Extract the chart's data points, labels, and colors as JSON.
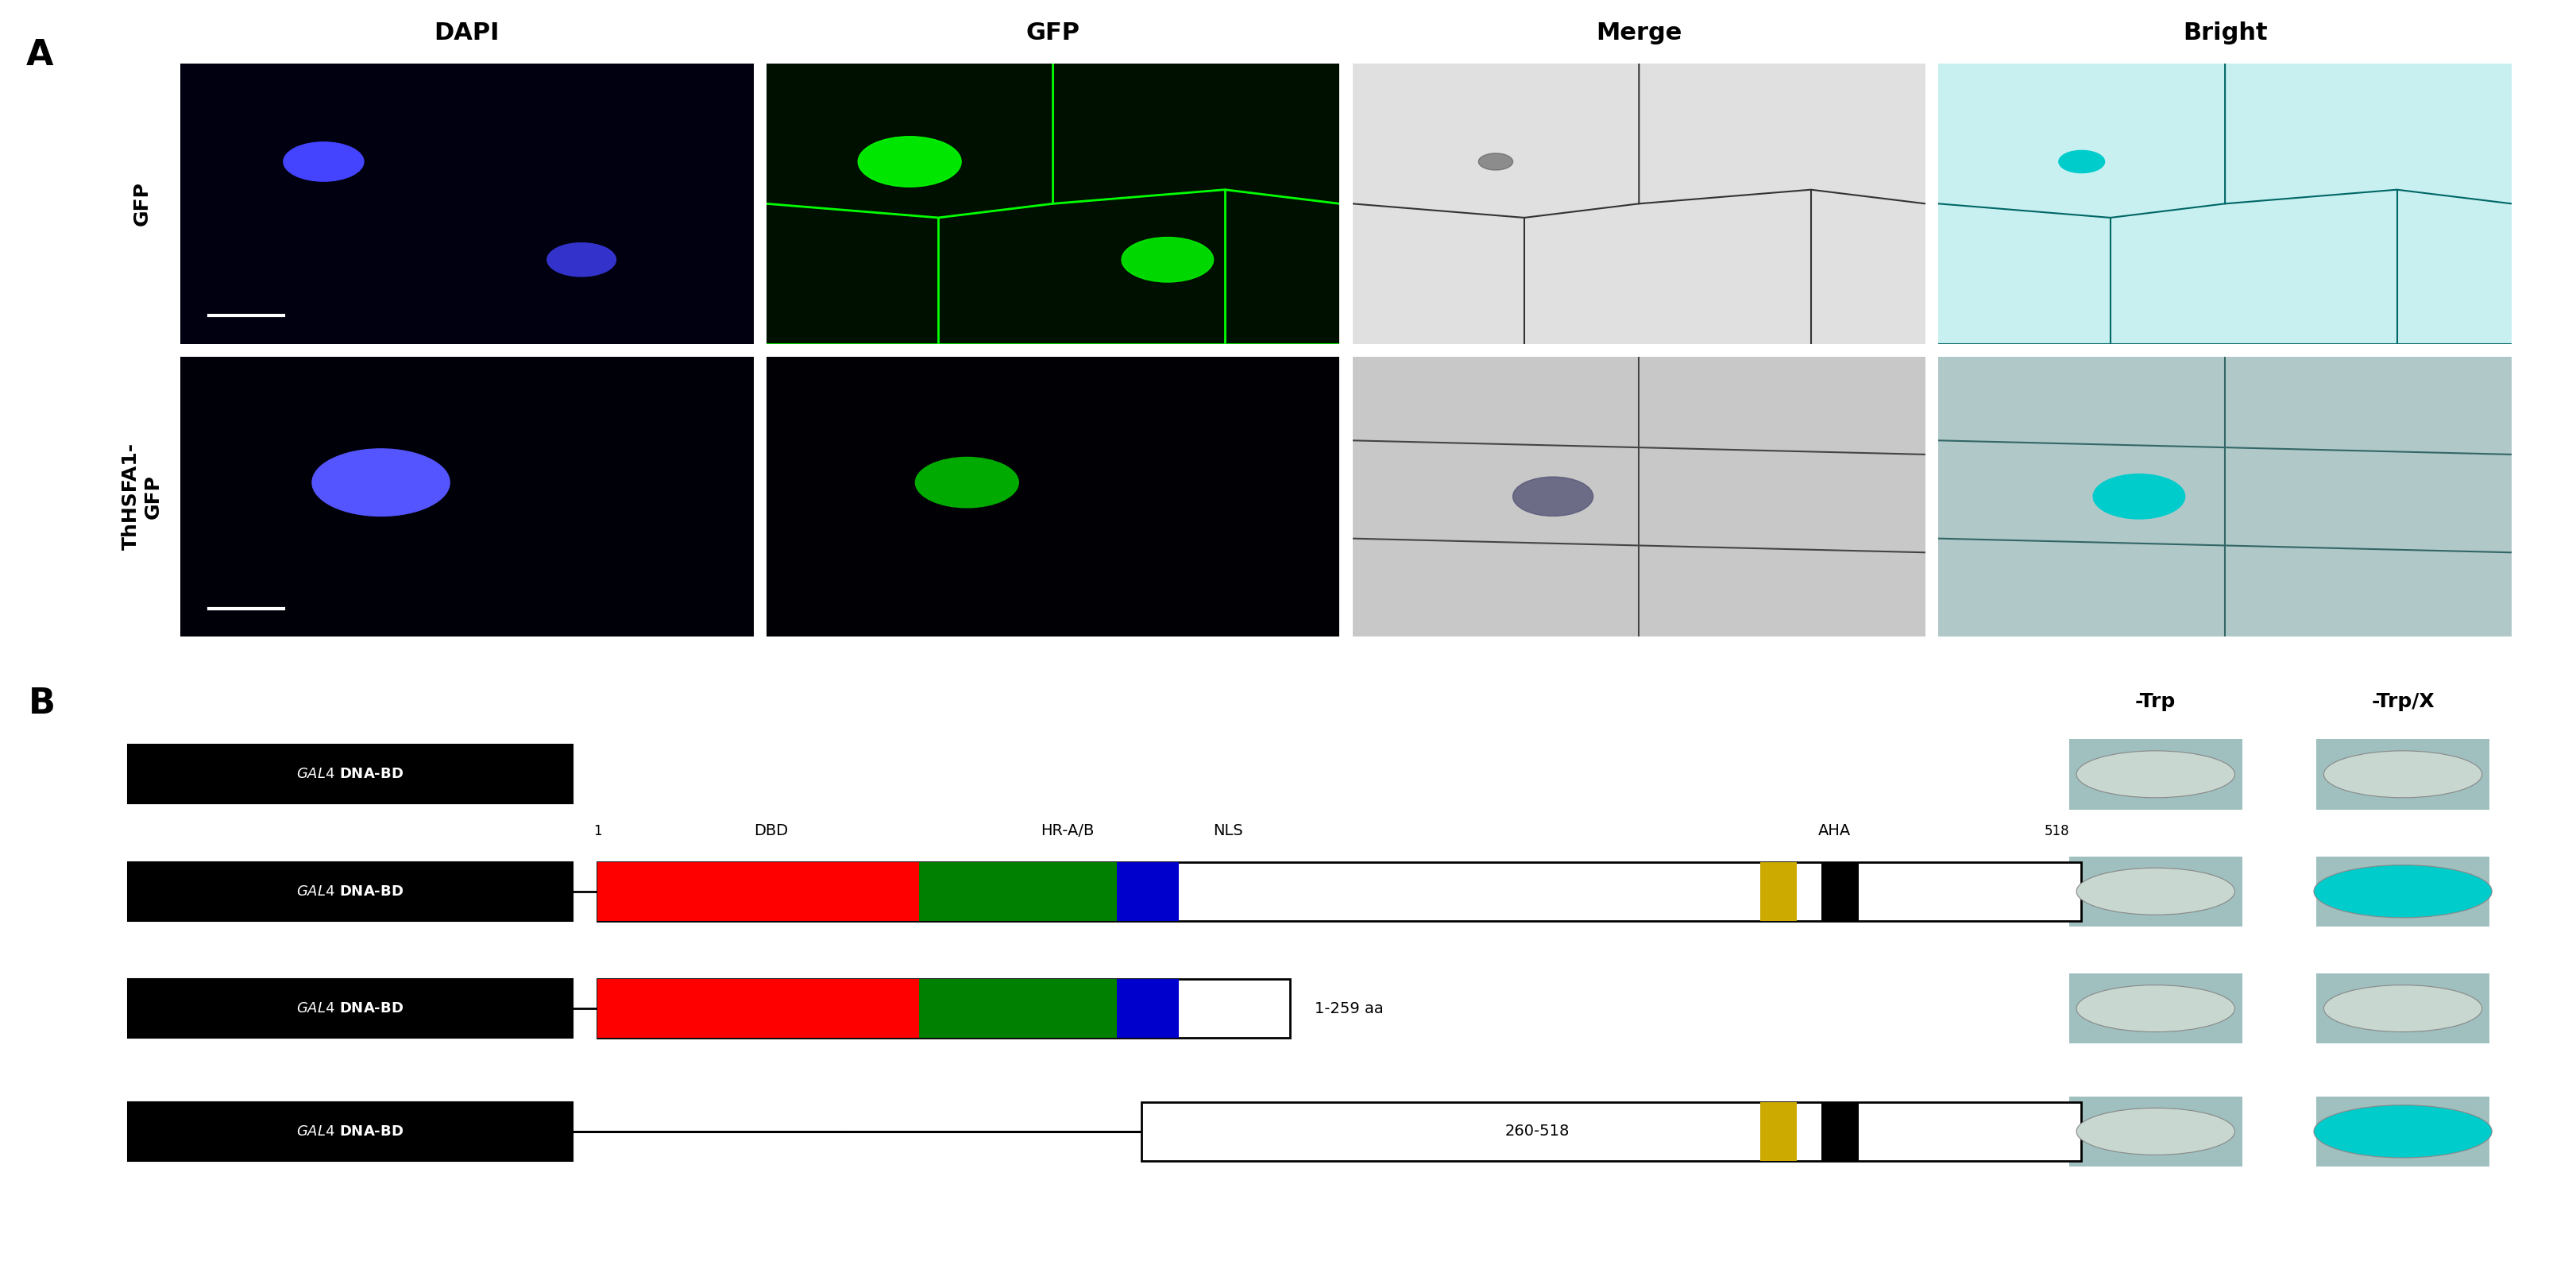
{
  "fig_width": 32.43,
  "fig_height": 16.02,
  "panel_A_label": "A",
  "panel_B_label": "B",
  "col_headers": [
    "DAPI",
    "GFP",
    "Merge",
    "Bright"
  ],
  "row_labels": [
    "GFP",
    "ThHSFA1-\nGFP"
  ],
  "trp_label": "-Trp",
  "trpx_label": "-Trp/X",
  "constructs": [
    {
      "label": "GAL4 DNA-BD",
      "has_bar": false,
      "has_red": false,
      "has_green": false,
      "has_blue_nls": false,
      "has_aha": false,
      "has_260518": false,
      "short": true
    },
    {
      "label": "GAL4 DNA-BD",
      "has_bar": true,
      "has_red": true,
      "has_green": true,
      "has_blue_nls": true,
      "has_aha": true,
      "has_260518": false,
      "short": false
    },
    {
      "label": "GAL4 DNA-BD",
      "has_bar": true,
      "has_red": true,
      "has_green": true,
      "has_blue_nls": true,
      "has_aha": false,
      "has_260518": false,
      "short": true,
      "label_text": "1-259 aa"
    },
    {
      "label": "GAL4 DNA-BD",
      "has_bar": true,
      "has_red": false,
      "has_green": false,
      "has_blue_nls": false,
      "has_aha": true,
      "has_260518": true,
      "short": false,
      "label_text": "260-518"
    }
  ],
  "domain_labels": {
    "pos1": "1",
    "dbd": "DBD",
    "hrab": "HR-A/B",
    "nls": "NLS",
    "aha": "AHA",
    "pos518": "518"
  },
  "colony_colors": {
    "trp_all": "#b8cfc8",
    "trpx_row0": "#b8cfc8",
    "trpx_row1": "#00d4d4",
    "trpx_row2": "#b8cfc8",
    "trpx_row3": "#00d4d4"
  },
  "black_box_color": "#000000",
  "white_text_color": "#ffffff",
  "red_color": "#ff0000",
  "green_color": "#008000",
  "blue_nls_color": "#0000cc",
  "aha_color": "#ccaa00",
  "aha2_color": "#000000"
}
